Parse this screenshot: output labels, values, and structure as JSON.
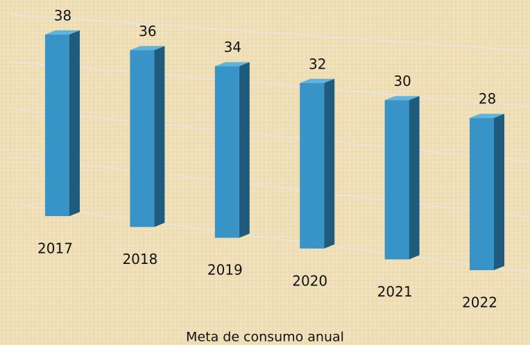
{
  "chart_data": {
    "type": "bar3d",
    "x_label": "Meta de consumo anual",
    "categories": [
      "2017",
      "2018",
      "2019",
      "2020",
      "2021",
      "2022"
    ],
    "values": [
      38,
      36,
      34,
      32,
      30,
      28
    ],
    "color": "#3894c6",
    "ylim": [
      0,
      40
    ],
    "yticks": [
      0,
      10,
      20,
      30,
      40
    ],
    "grid": true
  }
}
